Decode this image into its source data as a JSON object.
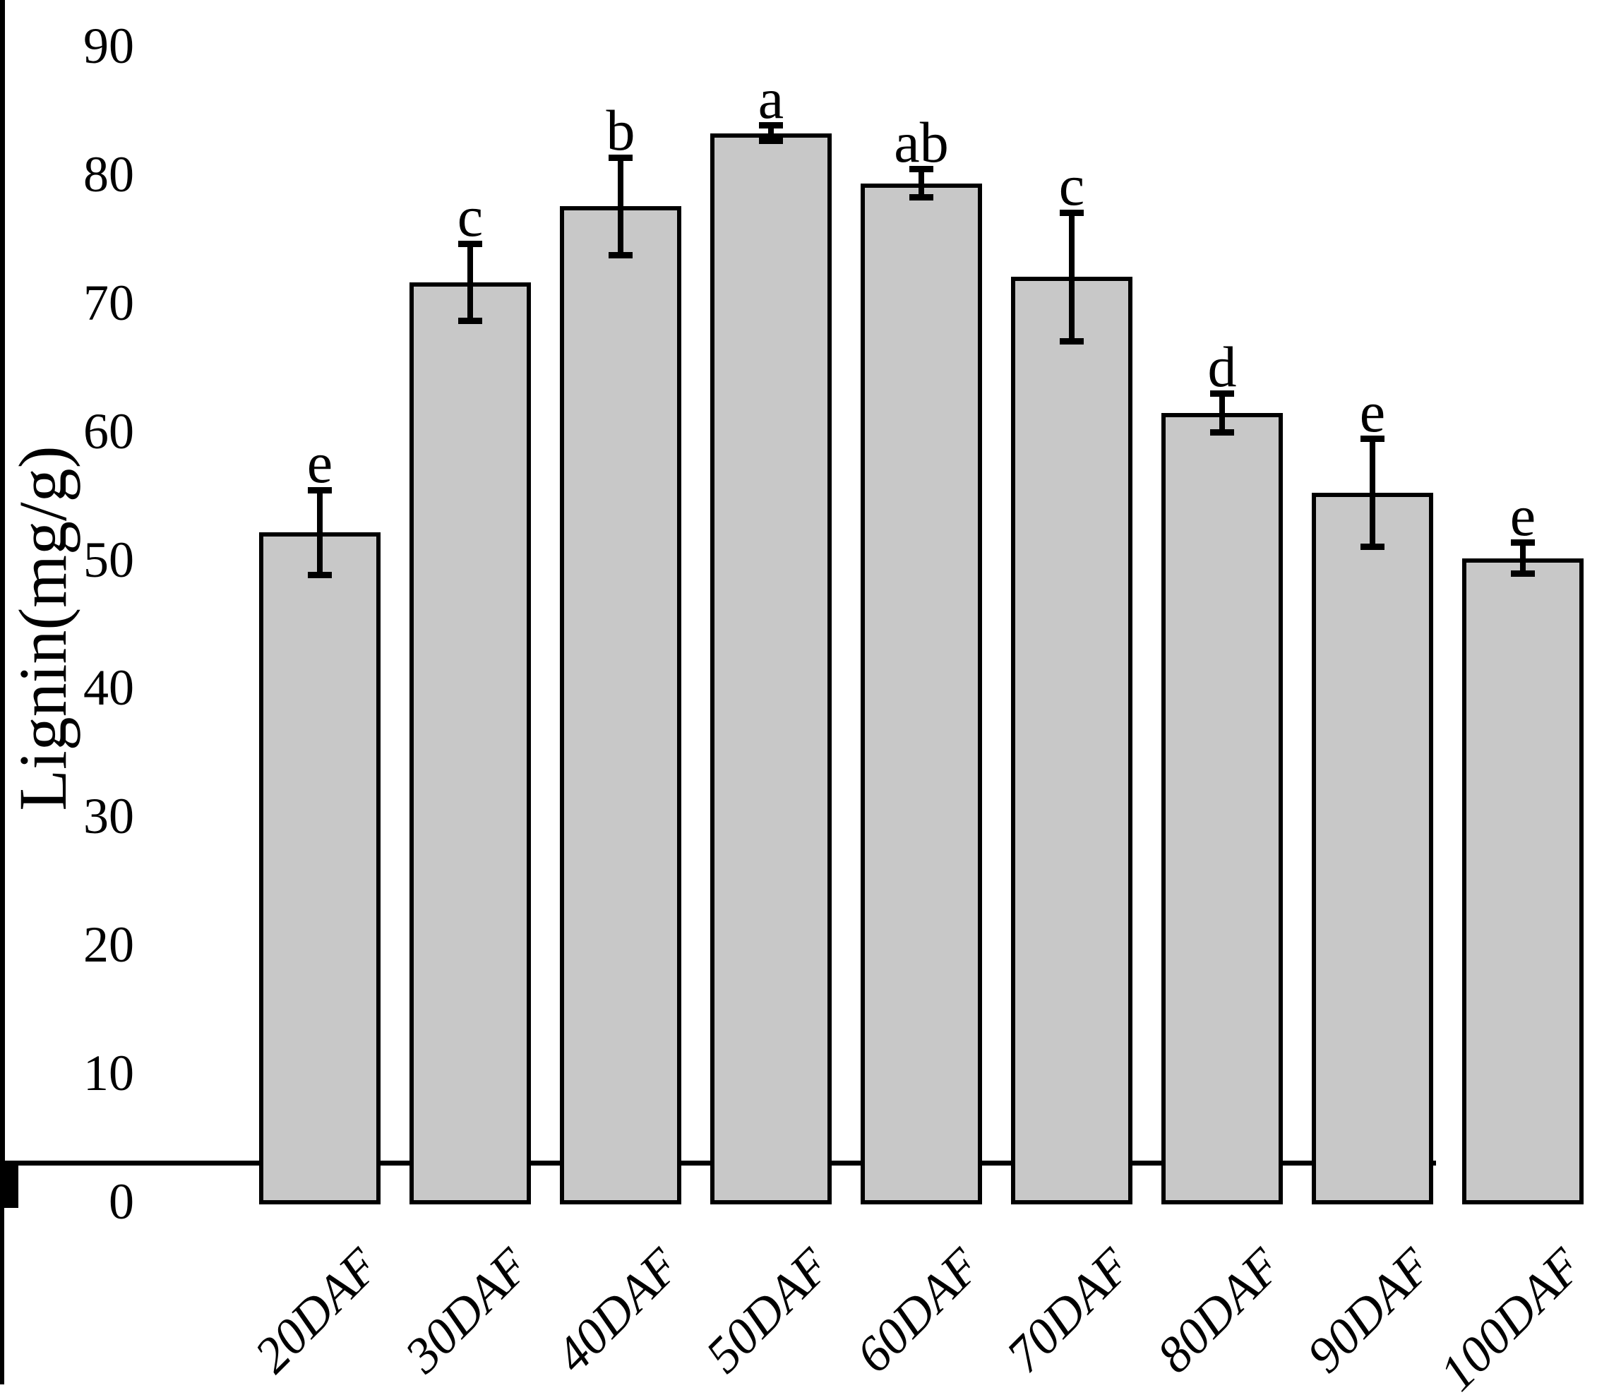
{
  "chart_data": {
    "type": "bar",
    "title": "",
    "xlabel": "",
    "ylabel": "Lignin(mg/g)",
    "categories": [
      "20DAF",
      "30DAF",
      "40DAF",
      "50DAF",
      "60DAF",
      "70DAF",
      "80DAF",
      "90DAF",
      "100DAF"
    ],
    "values": [
      52.1,
      71.6,
      77.5,
      83.2,
      79.3,
      72.0,
      61.4,
      55.2,
      50.1
    ],
    "errors": [
      3.3,
      3.0,
      3.8,
      0.6,
      1.1,
      5.0,
      1.5,
      4.2,
      1.2
    ],
    "sig_letters": [
      "e",
      "c",
      "b",
      "a",
      "ab",
      "c",
      "d",
      "e",
      "e"
    ],
    "ylim": [
      0,
      90
    ],
    "yticks": [
      0,
      10,
      20,
      30,
      40,
      50,
      60,
      70,
      80,
      90
    ],
    "grid": false,
    "legend": null,
    "bar_color": "#c8c8c8",
    "bar_border_color": "#000000",
    "error_bar_color": "#000000",
    "axis_color": "#000000",
    "text_color": "#000000"
  }
}
